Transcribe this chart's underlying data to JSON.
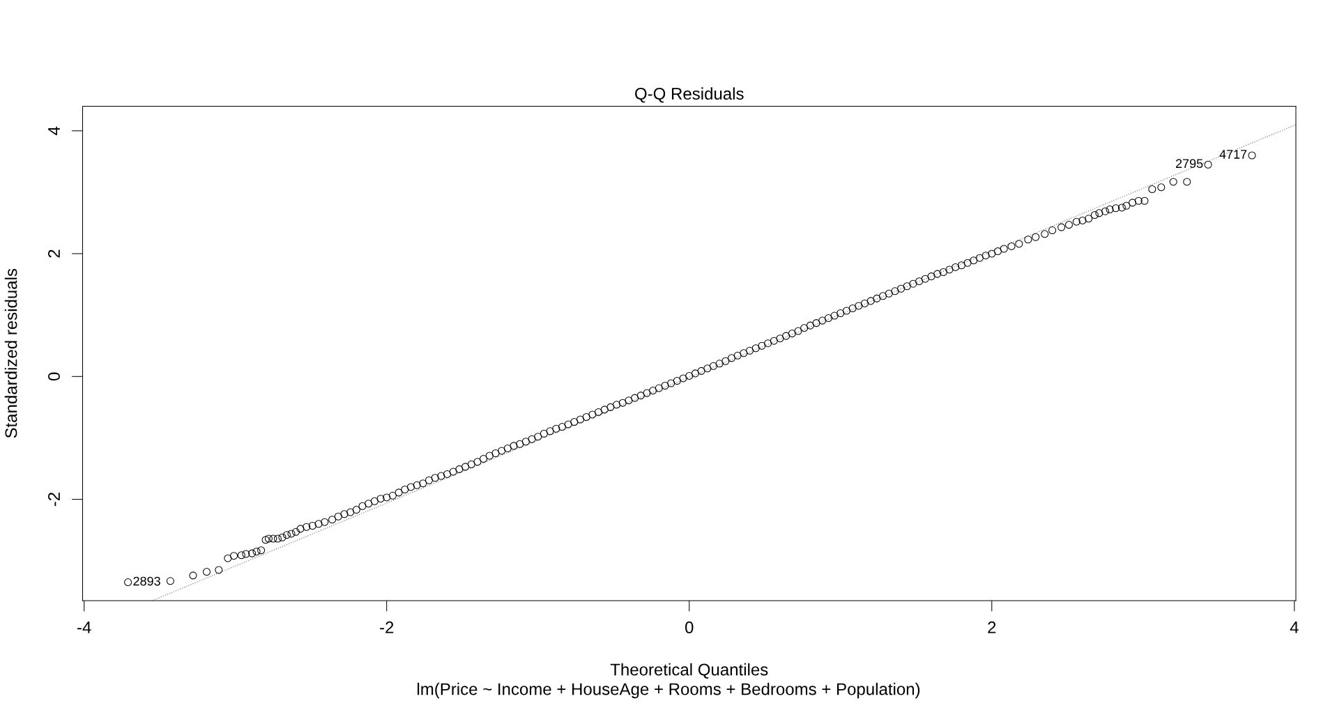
{
  "chart_data": {
    "type": "scatter",
    "title": "Q-Q Residuals",
    "xlabel": "Theoretical Quantiles",
    "ylabel": "Standardized residuals",
    "xlim": [
      -4.01,
      4.01
    ],
    "ylim": [
      -3.65,
      4.4
    ],
    "xticks": [
      -4,
      -2,
      0,
      2,
      4
    ],
    "yticks": [
      -2,
      0,
      2,
      4
    ],
    "marker": "circle",
    "series": [
      {
        "color": "#000000",
        "x": [
          -3.71,
          -3.43,
          -3.28,
          -3.19,
          -3.11,
          -3.05,
          -3.01,
          -2.96,
          -2.93,
          -2.89,
          -2.86,
          -2.83,
          -2.8,
          -2.78,
          -2.75,
          -2.72,
          -2.69,
          -2.66,
          -2.63,
          -2.6,
          -2.57,
          -2.53,
          -2.49,
          -2.45,
          -2.41,
          -2.36,
          -2.32,
          -2.28,
          -2.24,
          -2.2,
          -2.16,
          -2.12,
          -2.08,
          -2.04,
          -2.0,
          -1.96,
          -1.92,
          -1.88,
          -1.84,
          -1.8,
          -1.76,
          -1.72,
          -1.68,
          -1.64,
          -1.6,
          -1.56,
          -1.52,
          -1.48,
          -1.44,
          -1.4,
          -1.36,
          -1.32,
          -1.28,
          -1.24,
          -1.2,
          -1.16,
          -1.12,
          -1.08,
          -1.04,
          -1.0,
          -0.96,
          -0.92,
          -0.88,
          -0.84,
          -0.8,
          -0.76,
          -0.72,
          -0.68,
          -0.64,
          -0.6,
          -0.56,
          -0.52,
          -0.48,
          -0.44,
          -0.4,
          -0.36,
          -0.32,
          -0.28,
          -0.24,
          -0.2,
          -0.16,
          -0.12,
          -0.08,
          -0.04,
          0.0,
          0.04,
          0.08,
          0.12,
          0.16,
          0.2,
          0.24,
          0.28,
          0.32,
          0.36,
          0.4,
          0.44,
          0.48,
          0.52,
          0.56,
          0.6,
          0.64,
          0.68,
          0.72,
          0.76,
          0.8,
          0.84,
          0.88,
          0.92,
          0.96,
          1.0,
          1.04,
          1.08,
          1.12,
          1.16,
          1.2,
          1.24,
          1.28,
          1.32,
          1.36,
          1.4,
          1.44,
          1.48,
          1.52,
          1.56,
          1.6,
          1.64,
          1.68,
          1.72,
          1.76,
          1.8,
          1.84,
          1.88,
          1.92,
          1.96,
          2.0,
          2.04,
          2.08,
          2.13,
          2.18,
          2.24,
          2.29,
          2.35,
          2.4,
          2.46,
          2.51,
          2.56,
          2.6,
          2.64,
          2.68,
          2.71,
          2.75,
          2.78,
          2.82,
          2.86,
          2.89,
          2.93,
          2.97,
          3.01,
          3.06,
          3.12,
          3.2,
          3.29,
          3.43,
          3.72
        ],
        "values": [
          -3.35,
          -3.33,
          -3.24,
          -3.18,
          -3.15,
          -2.96,
          -2.92,
          -2.91,
          -2.89,
          -2.88,
          -2.85,
          -2.83,
          -2.66,
          -2.64,
          -2.64,
          -2.64,
          -2.62,
          -2.58,
          -2.56,
          -2.53,
          -2.48,
          -2.45,
          -2.43,
          -2.4,
          -2.37,
          -2.33,
          -2.28,
          -2.24,
          -2.21,
          -2.17,
          -2.11,
          -2.07,
          -2.03,
          -1.99,
          -1.97,
          -1.94,
          -1.89,
          -1.84,
          -1.8,
          -1.77,
          -1.74,
          -1.69,
          -1.65,
          -1.62,
          -1.59,
          -1.55,
          -1.51,
          -1.47,
          -1.43,
          -1.39,
          -1.34,
          -1.29,
          -1.25,
          -1.21,
          -1.17,
          -1.13,
          -1.1,
          -1.06,
          -1.02,
          -0.98,
          -0.93,
          -0.89,
          -0.85,
          -0.82,
          -0.78,
          -0.74,
          -0.7,
          -0.66,
          -0.62,
          -0.58,
          -0.54,
          -0.5,
          -0.46,
          -0.43,
          -0.39,
          -0.35,
          -0.31,
          -0.27,
          -0.23,
          -0.19,
          -0.15,
          -0.11,
          -0.07,
          -0.03,
          0.01,
          0.05,
          0.09,
          0.13,
          0.17,
          0.21,
          0.25,
          0.3,
          0.34,
          0.38,
          0.42,
          0.46,
          0.5,
          0.54,
          0.58,
          0.62,
          0.66,
          0.7,
          0.74,
          0.79,
          0.83,
          0.87,
          0.91,
          0.95,
          0.99,
          1.03,
          1.07,
          1.11,
          1.15,
          1.19,
          1.23,
          1.27,
          1.31,
          1.35,
          1.39,
          1.43,
          1.47,
          1.51,
          1.55,
          1.59,
          1.63,
          1.67,
          1.7,
          1.74,
          1.78,
          1.81,
          1.85,
          1.89,
          1.93,
          1.97,
          2.0,
          2.04,
          2.08,
          2.12,
          2.16,
          2.23,
          2.27,
          2.32,
          2.38,
          2.43,
          2.47,
          2.52,
          2.54,
          2.57,
          2.63,
          2.66,
          2.69,
          2.72,
          2.74,
          2.75,
          2.78,
          2.83,
          2.86,
          2.86,
          3.05,
          3.08,
          3.17,
          3.17,
          3.45,
          3.6
        ]
      },
      {
        "type": "line",
        "color": "#808080",
        "line_style": "dotted",
        "marker": "none",
        "x": [
          -3.55,
          4.01
        ],
        "values": [
          -3.65,
          4.1
        ]
      }
    ],
    "annotations": [
      {
        "text": "2893",
        "x": -3.71,
        "y": -3.35
      },
      {
        "text": "2795",
        "x": 3.43,
        "y": 3.45
      },
      {
        "text": "4717",
        "x": 3.72,
        "y": 3.6
      },
      "lm(Price ~ Income + HouseAge + Rooms + Bedrooms + Population)"
    ]
  }
}
